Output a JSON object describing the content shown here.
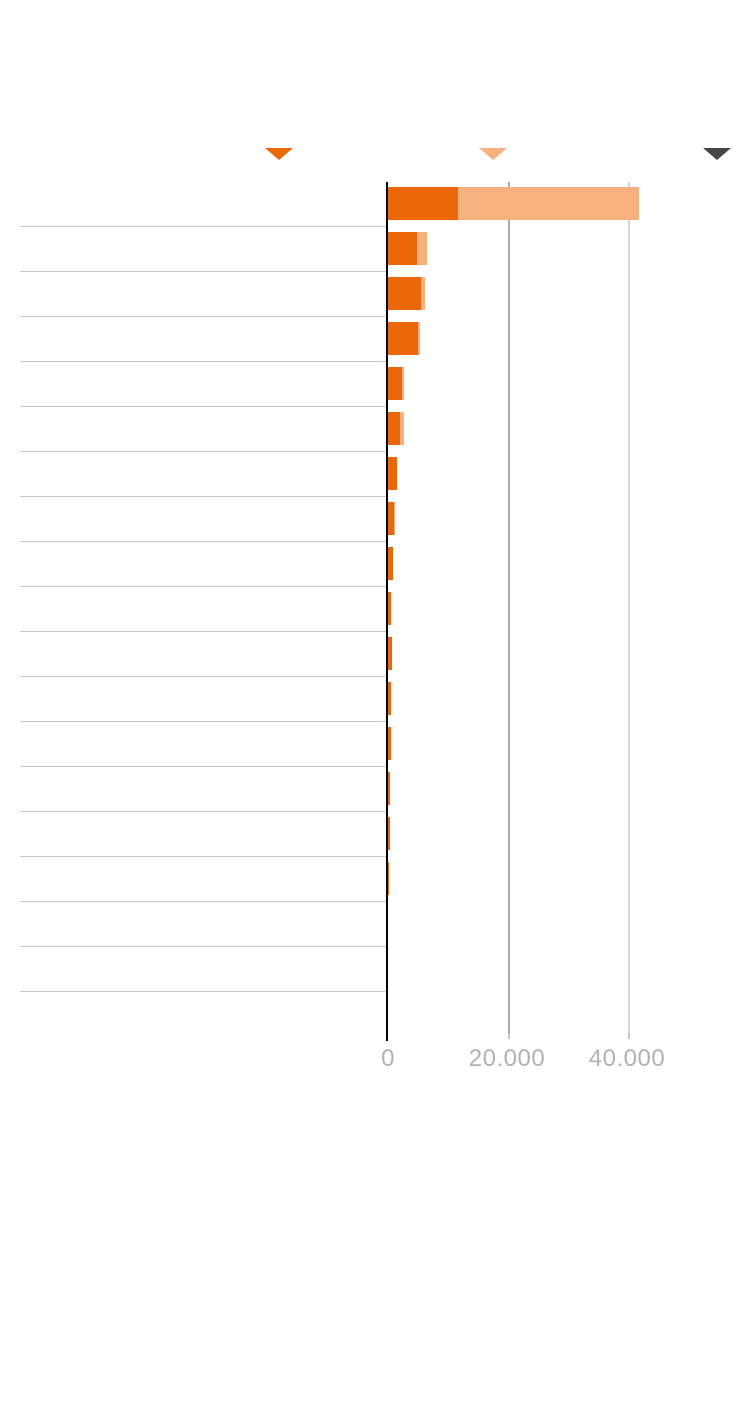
{
  "page": {
    "background": "#ffffff"
  },
  "header": {
    "sort_markers": [
      {
        "name": "primary",
        "icon": "triangle-down",
        "color": "#eb6708"
      },
      {
        "name": "secondary",
        "icon": "triangle-down",
        "color": "#f7b17e"
      },
      {
        "name": "tertiary",
        "icon": "triangle-down",
        "color": "#42464a"
      }
    ]
  },
  "colors": {
    "bar-primary": "#eb6708",
    "bar-secondary": "#f7b17e",
    "axis": "#000000",
    "row-divider": "#c9c9c9",
    "tick-label": "#b2b2b2"
  },
  "chart_data": {
    "type": "bar",
    "orientation": "horizontal",
    "stacked": true,
    "title": "",
    "grid": "vertical",
    "legend_position": "top",
    "categories": [
      "",
      "",
      "",
      "",
      "",
      "",
      "",
      "",
      "",
      "",
      "",
      "",
      "",
      "",
      "",
      "",
      "",
      "",
      ""
    ],
    "series": [
      {
        "name": "primary",
        "color": "#eb6708",
        "values": [
          11600,
          4800,
          5500,
          5000,
          2300,
          1950,
          1500,
          1000,
          830,
          580,
          670,
          420,
          420,
          250,
          330,
          170,
          0,
          0,
          0
        ]
      },
      {
        "name": "secondary",
        "color": "#f7b17e",
        "values": [
          30200,
          1700,
          670,
          330,
          330,
          800,
          0,
          170,
          0,
          0,
          0,
          0,
          0,
          0,
          0,
          0,
          0,
          0,
          0
        ]
      }
    ],
    "x_axis": {
      "min": 0,
      "max": 60000,
      "ticks": [
        {
          "value": 0,
          "label": "0",
          "line_color": "#000000"
        },
        {
          "value": 20000,
          "label": "20.000",
          "line_color": "#ababab"
        },
        {
          "value": 40000,
          "label": "40.000",
          "line_color": "#d6d6d6"
        }
      ]
    }
  }
}
